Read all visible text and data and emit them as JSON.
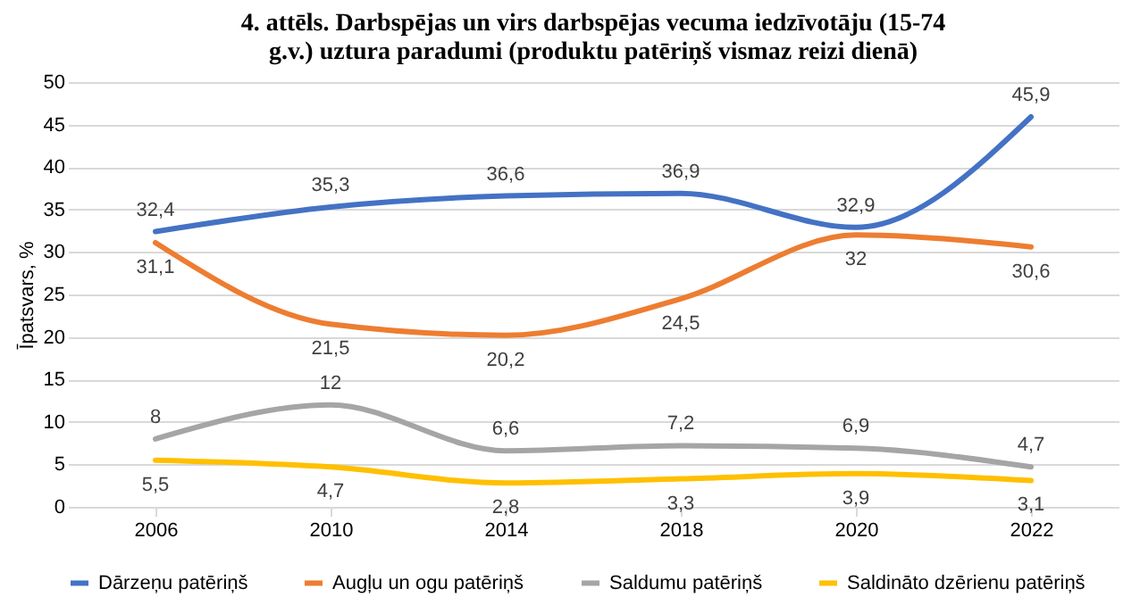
{
  "chart_data": {
    "type": "line",
    "title": "4. attēls. Darbspējas un virs darbspējas vecuma iedzīvotāju (15-74 g.v.) uztura paradumi (produktu patēriņš vismaz reizi dienā)",
    "ylabel": "Īpatsvars, %",
    "categories": [
      "2006",
      "2010",
      "2014",
      "2018",
      "2020",
      "2022"
    ],
    "ylim": [
      0,
      50
    ],
    "yticks": [
      0,
      5,
      10,
      15,
      20,
      25,
      30,
      35,
      40,
      45,
      50
    ],
    "grid": "y",
    "legend": "bottom",
    "marker": "none",
    "line_style": "solid",
    "series": [
      {
        "name": "Dārzeņu patēriņš",
        "color": "#4472c4",
        "values": [
          32.4,
          35.3,
          36.6,
          36.9,
          32.9,
          45.9
        ],
        "value_labels": [
          "32,4",
          "35,3",
          "36,6",
          "36,9",
          "32,9",
          "45,9"
        ]
      },
      {
        "name": "Augļu un ogu patēriņš",
        "color": "#ed7d31",
        "values": [
          31.1,
          21.5,
          20.2,
          24.5,
          32,
          30.6
        ],
        "value_labels": [
          "31,1",
          "21,5",
          "20,2",
          "24,5",
          "32",
          "30,6"
        ]
      },
      {
        "name": "Saldumu patēriņš",
        "color": "#a5a5a5",
        "values": [
          8,
          12,
          6.6,
          7.2,
          6.9,
          4.7
        ],
        "value_labels": [
          "8",
          "12",
          "6,6",
          "7,2",
          "6,9",
          "4,7"
        ]
      },
      {
        "name": "Saldināto dzērienu patēriņš",
        "color": "#ffc000",
        "values": [
          5.5,
          4.7,
          2.8,
          3.3,
          3.9,
          3.1
        ],
        "value_labels": [
          "5,5",
          "4,7",
          "2,8",
          "3,3",
          "3,9",
          "3,1"
        ]
      }
    ]
  }
}
